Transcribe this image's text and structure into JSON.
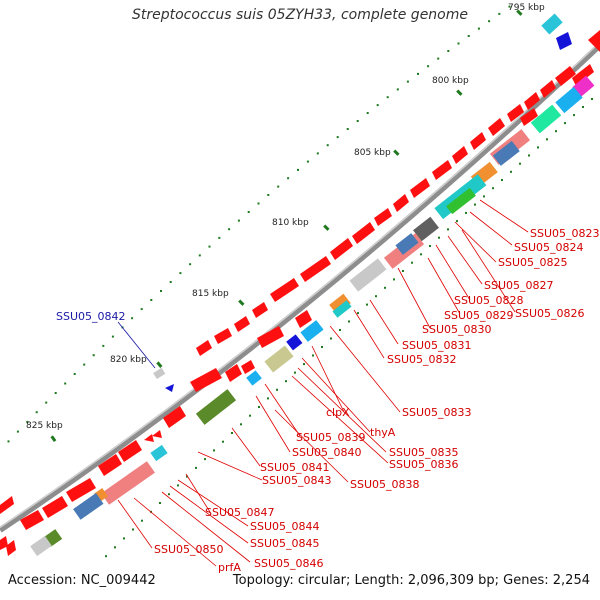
{
  "title": "Streptococcus suis 05ZYH33, complete genome",
  "accession": "Accession: NC_009442",
  "summary": "Topology: circular; Length: 2,096,309 bp; Genes: 2,254",
  "ticks": [
    "795 kbp",
    "800 kbp",
    "805 kbp",
    "810 kbp",
    "815 kbp",
    "820 kbp",
    "825 kbp"
  ],
  "gene_labels": [
    {
      "text": "SSU05_0823",
      "color": "#d40000"
    },
    {
      "text": "SSU05_0824",
      "color": "#d40000"
    },
    {
      "text": "SSU05_0825",
      "color": "#d40000"
    },
    {
      "text": "SSU05_0827",
      "color": "#d40000"
    },
    {
      "text": "SSU05_0826",
      "color": "#d40000"
    },
    {
      "text": "SSU05_0828",
      "color": "#d40000"
    },
    {
      "text": "SSU05_0829",
      "color": "#d40000"
    },
    {
      "text": "SSU05_0830",
      "color": "#d40000"
    },
    {
      "text": "SSU05_0831",
      "color": "#d40000"
    },
    {
      "text": "SSU05_0832",
      "color": "#d40000"
    },
    {
      "text": "SSU05_0842",
      "color": "#1a1aa6"
    },
    {
      "text": "clpX",
      "color": "#d40000"
    },
    {
      "text": "SSU05_0833",
      "color": "#d40000"
    },
    {
      "text": "thyA",
      "color": "#d40000"
    },
    {
      "text": "SSU05_0839",
      "color": "#d40000"
    },
    {
      "text": "SSU05_0840",
      "color": "#d40000"
    },
    {
      "text": "SSU05_0835",
      "color": "#d40000"
    },
    {
      "text": "SSU05_0836",
      "color": "#d40000"
    },
    {
      "text": "SSU05_0841",
      "color": "#d40000"
    },
    {
      "text": "SSU05_0843",
      "color": "#d40000"
    },
    {
      "text": "SSU05_0838",
      "color": "#d40000"
    },
    {
      "text": "SSU05_0847",
      "color": "#d40000"
    },
    {
      "text": "SSU05_0844",
      "color": "#d40000"
    },
    {
      "text": "SSU05_0845",
      "color": "#d40000"
    },
    {
      "text": "SSU05_0846",
      "color": "#d40000"
    },
    {
      "text": "SSU05_0850",
      "color": "#d40000"
    },
    {
      "text": "prfA",
      "color": "#d40000"
    }
  ],
  "colors": {
    "cds": "#ff0000",
    "backbone": "#8a8a8a",
    "tick_mark": "#1f7a1f",
    "label_red": "#d40000",
    "label_blue": "#1a1aa6"
  }
}
